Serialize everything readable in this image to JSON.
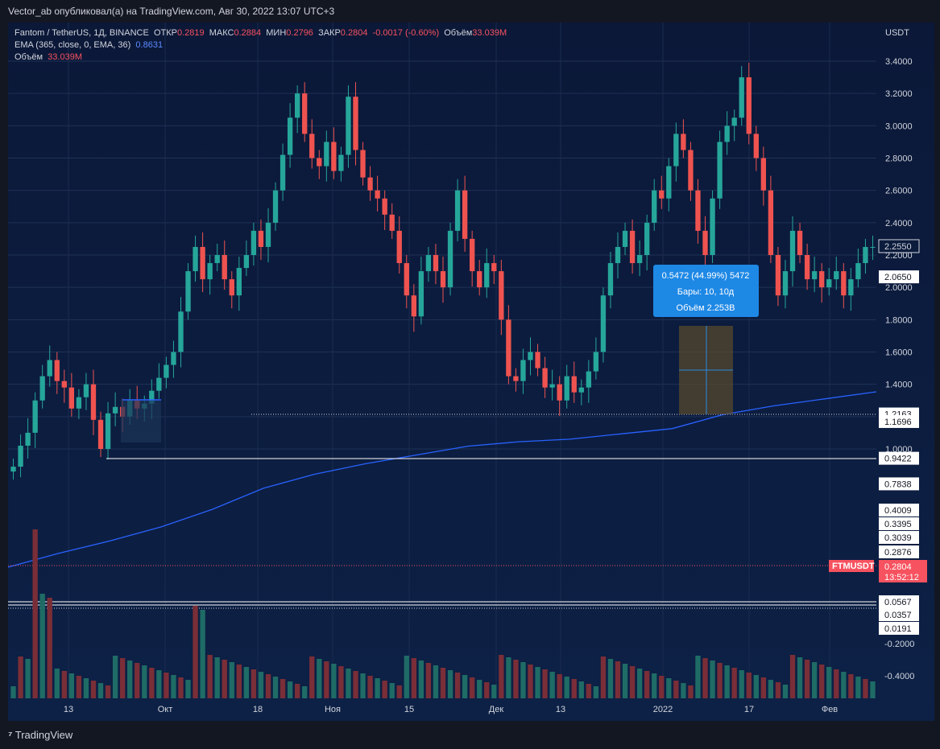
{
  "header": {
    "published_text": "Vector_ab опубликовал(а) на TradingView.com, Авг 30, 2022 13:07 UTC+3"
  },
  "legend": {
    "symbol": "Fantom / TetherUS, 1Д, BINANCE",
    "open_label": "ОТКР",
    "open": "0.2819",
    "high_label": "МАКС",
    "high": "0.2884",
    "low_label": "МИН",
    "low": "0.2796",
    "close_label": "ЗАКР",
    "close": "0.2804",
    "change": "-0.0017 (-0.60%)",
    "vol_label": "Объём",
    "vol": "33.039M",
    "ema_label": "EMA (365, close, 0, EMA, 36)",
    "ema_value": "0.8631",
    "volume_label": "Объём",
    "volume_value": "33.039M"
  },
  "footer": {
    "brand": "TradingView"
  },
  "measure_box": {
    "line1": "0.5472 (44.99%) 5472",
    "line2": "Бары: 10, 10д",
    "line3": "Объём 2.253B"
  },
  "colors": {
    "up": "#26a69a",
    "down": "#ef5350",
    "ema": "#2962ff",
    "panel": "#0c1c3c"
  },
  "chart_data": {
    "type": "candlestick",
    "title": "Fantom / TetherUS, 1Д, BINANCE",
    "y_unit": "USDT",
    "x_ticks": [
      "13",
      "Окт",
      "18",
      "Ноя",
      "15",
      "Дек",
      "13",
      "2022",
      "17",
      "Фев"
    ],
    "y_ticks": [
      "3.4000",
      "3.2000",
      "3.0000",
      "2.8000",
      "2.6000",
      "2.4000",
      "2.2000",
      "2.0000",
      "1.8000",
      "1.6000",
      "1.4000",
      "1.2000",
      "1.0000"
    ],
    "ylim": [
      0.8,
      3.55
    ],
    "price_tags": [
      {
        "label": "2.2550",
        "value": 2.255,
        "style": "outline"
      },
      {
        "label": "2.0650",
        "value": 2.065,
        "style": "white"
      },
      {
        "label": "1.2163",
        "value": 1.2163,
        "style": "white"
      },
      {
        "label": "1.1696",
        "value": 1.1696,
        "style": "white"
      },
      {
        "label": "0.9422",
        "value": 0.9422,
        "style": "white"
      },
      {
        "label": "0.7838",
        "value": 0.7838,
        "style": "white"
      }
    ],
    "lower_tags": [
      "0.4009",
      "0.3395",
      "0.3039",
      "0.2876"
    ],
    "current_symbol": "FTMUSDT",
    "current_price": "0.2804",
    "current_timer": "13:52:12",
    "volume_tags": [
      "0.0567",
      "0.0357",
      "0.0191"
    ],
    "volume_axis": [
      "-0.2000",
      "-0.4000"
    ],
    "ema_series": [
      0.33,
      0.41,
      0.48,
      0.56,
      0.66,
      0.78,
      0.86,
      0.92,
      0.97,
      1.02,
      1.045,
      1.06,
      1.09,
      1.12,
      1.2,
      1.25,
      1.29,
      1.33
    ],
    "candles_close": [
      0.89,
      1.02,
      1.1,
      1.3,
      1.45,
      1.55,
      1.42,
      1.38,
      1.25,
      1.32,
      1.4,
      1.18,
      1.0,
      1.22,
      1.26,
      1.2,
      1.3,
      1.25,
      1.28,
      1.36,
      1.44,
      1.52,
      1.6,
      1.85,
      2.1,
      2.25,
      2.05,
      2.15,
      2.2,
      2.05,
      1.95,
      2.12,
      2.2,
      2.35,
      2.25,
      2.4,
      2.6,
      2.82,
      3.05,
      3.2,
      2.95,
      2.8,
      2.75,
      2.9,
      2.72,
      2.82,
      3.18,
      2.85,
      2.68,
      2.6,
      2.55,
      2.45,
      2.35,
      2.15,
      1.95,
      1.82,
      2.1,
      2.2,
      2.1,
      2.0,
      2.35,
      2.6,
      2.3,
      2.1,
      2.0,
      2.15,
      2.1,
      1.8,
      1.45,
      1.42,
      1.55,
      1.6,
      1.5,
      1.38,
      1.4,
      1.3,
      1.45,
      1.35,
      1.38,
      1.48,
      1.6,
      1.95,
      2.15,
      2.25,
      2.35,
      2.15,
      2.2,
      2.4,
      2.6,
      2.55,
      2.75,
      2.95,
      2.85,
      2.6,
      2.35,
      2.2,
      2.55,
      2.9,
      3.0,
      3.05,
      3.3,
      2.95,
      2.8,
      2.6,
      2.2,
      1.95,
      2.1,
      2.35,
      2.2,
      2.05,
      2.1,
      2.0,
      2.05,
      2.1,
      1.95,
      2.05,
      2.15,
      2.25,
      2.25
    ]
  }
}
